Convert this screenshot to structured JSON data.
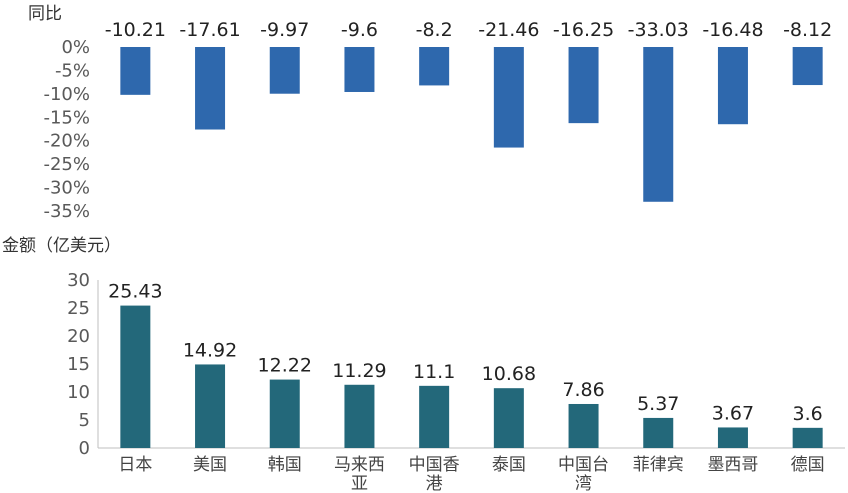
{
  "chart_data": [
    {
      "type": "bar",
      "ylabel": "同比",
      "categories": [
        "日本",
        "美国",
        "韩国",
        "马来西亚",
        "中国香港",
        "泰国",
        "中国台湾",
        "菲律宾",
        "墨西哥",
        "德国"
      ],
      "values": [
        -10.21,
        -17.61,
        -9.97,
        -9.6,
        -8.2,
        -21.46,
        -16.25,
        -33.03,
        -16.48,
        -8.12
      ],
      "data_labels": [
        "-10.21",
        "-17.61",
        "-9.97",
        "-9.6",
        "-8.2",
        "-21.46",
        "-16.25",
        "-33.03",
        "-16.48",
        "-8.12"
      ],
      "ylim": [
        -35,
        0
      ],
      "yticks": [
        "0%",
        "-5%",
        "-10%",
        "-15%",
        "-20%",
        "-25%",
        "-30%",
        "-35%"
      ],
      "color": "#2e68ad",
      "grid": false
    },
    {
      "type": "bar",
      "ylabel": "金额（亿美元）",
      "categories": [
        "日本",
        "美国",
        "韩国",
        "马来西亚",
        "中国香港",
        "泰国",
        "中国台湾",
        "菲律宾",
        "墨西哥",
        "德国"
      ],
      "category_lines": [
        [
          "日本"
        ],
        [
          "美国"
        ],
        [
          "韩国"
        ],
        [
          "马来西",
          "亚"
        ],
        [
          "中国香",
          "港"
        ],
        [
          "泰国"
        ],
        [
          "中国台",
          "湾"
        ],
        [
          "菲律宾"
        ],
        [
          "墨西哥"
        ],
        [
          "德国"
        ]
      ],
      "values": [
        25.43,
        14.92,
        12.22,
        11.29,
        11.1,
        10.68,
        7.86,
        5.37,
        3.67,
        3.6
      ],
      "data_labels": [
        "25.43",
        "14.92",
        "12.22",
        "11.29",
        "11.1",
        "10.68",
        "7.86",
        "5.37",
        "3.67",
        "3.6"
      ],
      "ylim": [
        0,
        30
      ],
      "yticks": [
        "0",
        "5",
        "10",
        "15",
        "20",
        "25",
        "30"
      ],
      "color": "#23687a",
      "grid": false
    }
  ]
}
